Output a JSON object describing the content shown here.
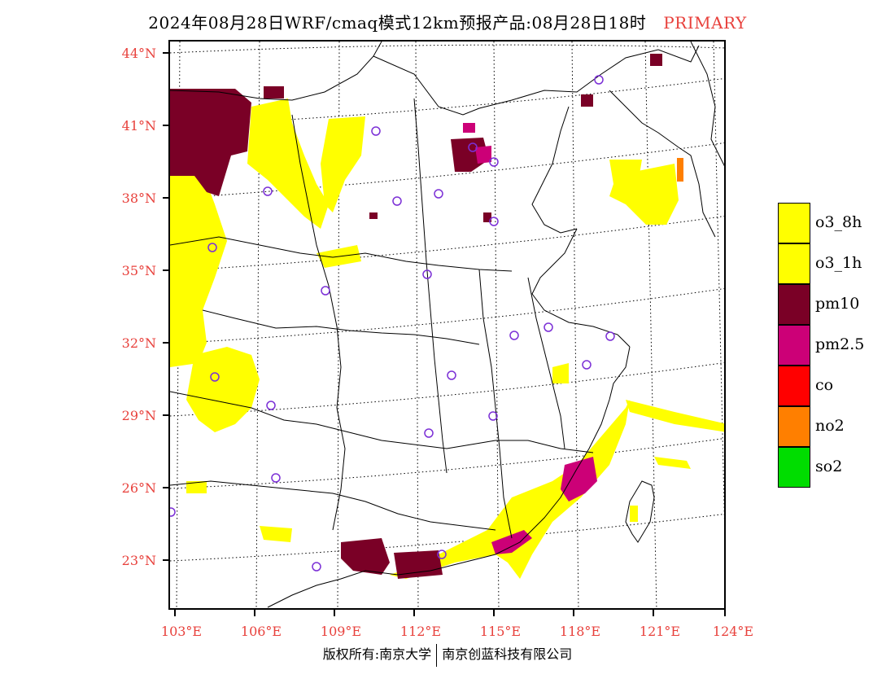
{
  "title": {
    "main": "2024年08月28日WRF/cmaq模式12km预报产品:08月28日18时",
    "primary": "PRIMARY"
  },
  "map": {
    "lat_labels": [
      "44°N",
      "41°N",
      "38°N",
      "35°N",
      "32°N",
      "29°N",
      "26°N",
      "23°N"
    ],
    "lon_labels": [
      "103°E",
      "106°E",
      "109°E",
      "112°E",
      "115°E",
      "118°E",
      "121°E",
      "124°E"
    ],
    "boundary_color": "#000000",
    "city_marker_color": "#7b2fd6"
  },
  "legend": [
    {
      "label": "o3_8h",
      "color": "#ffff00"
    },
    {
      "label": "o3_1h",
      "color": "#ffff00"
    },
    {
      "label": "pm10",
      "color": "#7a0026"
    },
    {
      "label": "pm2.5",
      "color": "#cc0077"
    },
    {
      "label": "co",
      "color": "#ff0000"
    },
    {
      "label": "no2",
      "color": "#ff7f00"
    },
    {
      "label": "so2",
      "color": "#00dd00"
    }
  ],
  "footer": {
    "left": "版权所有:南京大学",
    "right": "南京创蓝科技有限公司"
  }
}
